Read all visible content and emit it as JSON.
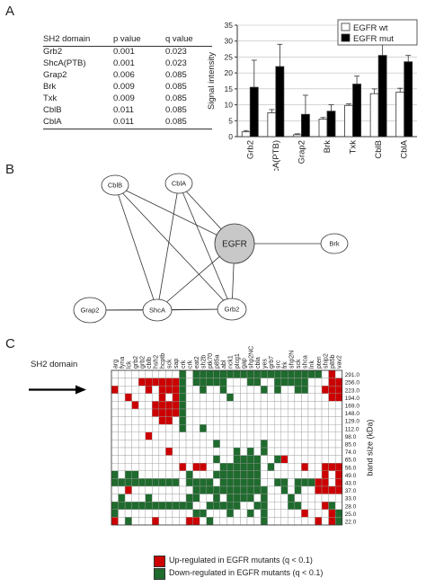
{
  "panels": {
    "a": "A",
    "b": "B",
    "c": "C"
  },
  "table_a": {
    "headers": [
      "SH2 domain",
      "p value",
      "q value"
    ],
    "rows": [
      [
        "Grb2",
        "0.001",
        "0.023"
      ],
      [
        "ShcA(PTB)",
        "0.001",
        "0.023"
      ],
      [
        "Grap2",
        "0.006",
        "0.085"
      ],
      [
        "Brk",
        "0.009",
        "0.085"
      ],
      [
        "Txk",
        "0.009",
        "0.085"
      ],
      [
        "CblB",
        "0.011",
        "0.085"
      ],
      [
        "CblA",
        "0.011",
        "0.085"
      ]
    ]
  },
  "chart_data": [
    {
      "type": "bar",
      "categories": [
        "Grb2",
        "ShcA(PTB)",
        "Grap2",
        "Brk",
        "Txk",
        "CblB",
        "CblA"
      ],
      "series": [
        {
          "name": "EGFR wt",
          "color": "#ffffff",
          "values": [
            1.5,
            7.5,
            0.6,
            5.5,
            9.8,
            13.5,
            14
          ],
          "errors": [
            0.4,
            1.0,
            0.3,
            0.5,
            0.5,
            1.5,
            1.2
          ]
        },
        {
          "name": "EGFR mut",
          "color": "#000000",
          "values": [
            15.5,
            22,
            7,
            8,
            16.5,
            25.5,
            23.5
          ],
          "errors": [
            8.5,
            7,
            6,
            2,
            2.5,
            4,
            2
          ]
        }
      ],
      "ylabel": "Signal intensity",
      "ylim": [
        0,
        35
      ],
      "yticks": [
        0,
        5,
        10,
        15,
        20,
        25,
        30,
        35
      ],
      "legend": "top-right"
    },
    {
      "type": "heatmap",
      "ylabel_left": "SH2 domain",
      "ylabel_right": "band size (kDa)",
      "columns": [
        "arg",
        "fyna",
        "lck",
        "cblb",
        "grb2",
        "hsh2",
        "hcptb",
        "sck",
        "sap",
        "cbl",
        "tns",
        "crk",
        "eat2",
        "sh2b",
        "ptk70",
        "p85a",
        "abl",
        "nck1",
        "plcg1",
        "gap",
        "shp2NC",
        "cbla",
        "yes",
        "grb7",
        "src",
        "frk",
        "shp2N",
        "sck",
        "shca",
        "lnk",
        "tns",
        "ship2",
        "p85b",
        "vav2"
      ],
      "column_labels_raw": [
        "arg",
        "fyna",
        "lck",
        "grb2",
        "grb2",
        "cblb",
        "hsh2",
        "hcptb",
        "sck",
        "sap",
        "crk",
        "crk",
        "eat2",
        "sh2b",
        "ptk70",
        "p85a",
        "abl",
        "nck1",
        "plcg1",
        "gap",
        "shp2NC",
        "cbla",
        "yes",
        "grb7",
        "src",
        "frk",
        "shp2N",
        "sck",
        "shca",
        "lnk",
        "pten",
        "ship2",
        "p85b",
        "vav2"
      ],
      "rows": [
        "291.0",
        "256.0",
        "223.0",
        "194.0",
        "169.0",
        "148.0",
        "129.0",
        "112.0",
        "98.0",
        "85.0",
        "74.0",
        "65.0",
        "56.0",
        "49.0",
        "43.0",
        "37.0",
        "33.0",
        "28.0",
        "25.0",
        "22.0"
      ],
      "legend": [
        {
          "label": "Up-regulated in EGFR mutants (q < 0.1)",
          "color": "#cc0000"
        },
        {
          "label": "Down-regulated in EGFR mutants (q < 0.1)",
          "color": "#1f6b2e"
        }
      ],
      "grid": [
        "..........G.GGGGGGGGGGGGGGGGGGG.R.",
        "....RRRRRRG.GGGGG...GG..GGGGG...RR",
        "R....R.RRRG..G..G.....G.G..GG..RRR",
        "..R....R.RG......G..............RR",
        "...R..RRRRG.......................",
        "......RRRRG.......................",
        ".......RR.G.......................",
        "..........G..G....................",
        ".....R............................",
        "...............G......G...........",
        "........R.........G.G.G...........",
        "...............G..GGGG..GR........",
        "..........R.RR..GGGGGG.G....R..RRR",
        "G.GG.......G...GGGGGGG.........R.R",
        "GGGGGGGGGG.GGGG.GGGGGG..GG.GGGRR.R",
        "..R.........GGGGGGGGGGG..G.G..RRRR",
        ".G...G.....GG..G.GGGG.G...G.......",
        "GGGGGGGGGGGG..GGGGG..GG...GG...RG.",
        "G...........GG...G..G.G.....R...RG",
        "R.G...R....RR.G.......G.......R.RG"
      ]
    }
  ],
  "network_b": {
    "nodes": [
      {
        "id": "CblB",
        "label": "CblB"
      },
      {
        "id": "CblA",
        "label": "CblA"
      },
      {
        "id": "EGFR",
        "label": "EGFR"
      },
      {
        "id": "Brk",
        "label": "Brk"
      },
      {
        "id": "Grap2",
        "label": "Grap2"
      },
      {
        "id": "ShcA",
        "label": "ShcA"
      },
      {
        "id": "Grb2",
        "label": "Grb2"
      }
    ],
    "edges": [
      [
        "CblB",
        "EGFR"
      ],
      [
        "CblB",
        "ShcA"
      ],
      [
        "CblB",
        "Grb2"
      ],
      [
        "CblA",
        "EGFR"
      ],
      [
        "CblA",
        "ShcA"
      ],
      [
        "CblA",
        "Grb2"
      ],
      [
        "EGFR",
        "Brk"
      ],
      [
        "EGFR",
        "ShcA"
      ],
      [
        "EGFR",
        "Grb2"
      ],
      [
        "Grap2",
        "ShcA"
      ],
      [
        "ShcA",
        "Grb2"
      ],
      [
        "Grap2",
        "Grb2"
      ]
    ]
  },
  "arrow_c": "arrow pointing right at band 223.0"
}
